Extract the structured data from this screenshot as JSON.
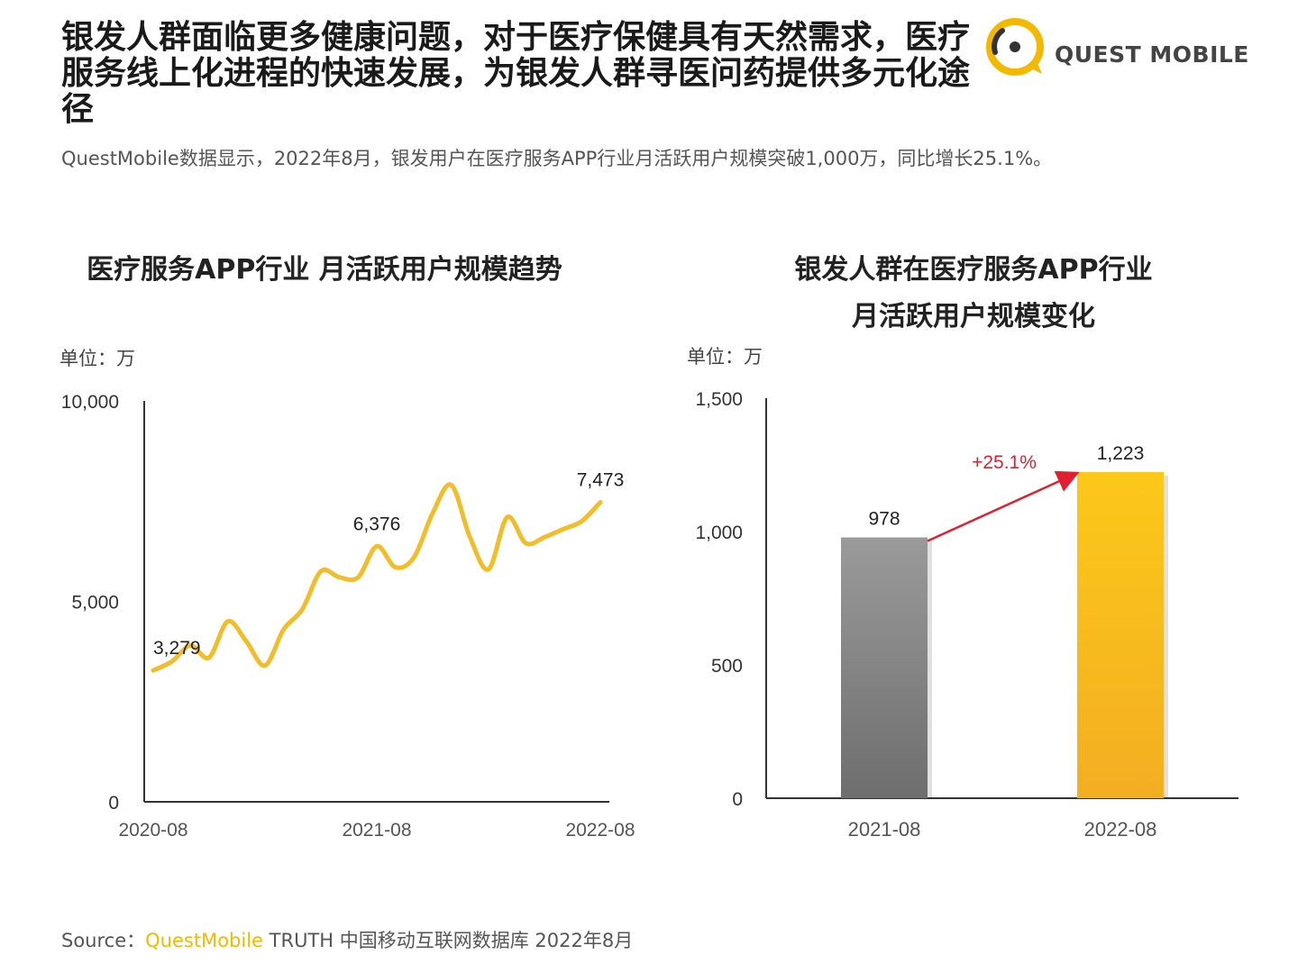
{
  "header": {
    "headline": "银发人群面临更多健康问题，对于医疗保健具有天然需求，医疗服务线上化进程的快速发展，为银发人群寻医问药提供多元化途径",
    "subline": "QuestMobile数据显示，2022年8月，银发用户在医疗服务APP行业月活跃用户规模突破1,000万，同比增长25.1%。",
    "logo_text": "QUEST MOBILE",
    "logo_icon": "questmobile-logo-icon"
  },
  "colors": {
    "accent": "#f5b800",
    "line": "#f3bd2a",
    "bar_gray": "#8a8a8a",
    "bar_gold": "#f7c21c",
    "growth_red": "#e02030"
  },
  "chart_data": [
    {
      "type": "line",
      "title": "医疗服务APP行业 月活跃用户规模趋势",
      "unit_label": "单位：万",
      "ylim": [
        0,
        10000
      ],
      "y_ticks": [
        "0",
        "5,000",
        "10,000"
      ],
      "y_tick_values": [
        0,
        5000,
        10000
      ],
      "x_tick_labels": [
        "2020-08",
        "2021-08",
        "2022-08"
      ],
      "x_tick_index": [
        0,
        12,
        24
      ],
      "series": [
        {
          "values": [
            3279,
            3500,
            3900,
            3600,
            4500,
            4000,
            3400,
            4300,
            4800,
            5750,
            5600,
            5600,
            6376,
            5850,
            6100,
            7200,
            7900,
            6600,
            5800,
            7100,
            6450,
            6600,
            6800,
            7000,
            7473
          ]
        }
      ],
      "data_labels": [
        {
          "index": 0,
          "text": "3,279"
        },
        {
          "index": 12,
          "text": "6,376"
        },
        {
          "index": 24,
          "text": "7,473"
        }
      ]
    },
    {
      "type": "bar",
      "title": "银发人群在医疗服务APP行业月活跃用户规模变化",
      "title_line1": "银发人群在医疗服务APP行业",
      "title_line2": "月活跃用户规模变化",
      "unit_label": "单位：万",
      "ylim": [
        0,
        1500
      ],
      "y_ticks": [
        "0",
        "500",
        "1,000",
        "1,500"
      ],
      "y_tick_values": [
        0,
        500,
        1000,
        1500
      ],
      "categories": [
        "2021-08",
        "2022-08"
      ],
      "values": [
        978,
        1223
      ],
      "value_labels": [
        "978",
        "1,223"
      ],
      "growth_label": "+25.1%"
    }
  ],
  "footer": {
    "source_prefix": "Source：",
    "source_brand": "QuestMobile",
    "source_rest": " TRUTH 中国移动互联网数据库 2022年8月"
  }
}
